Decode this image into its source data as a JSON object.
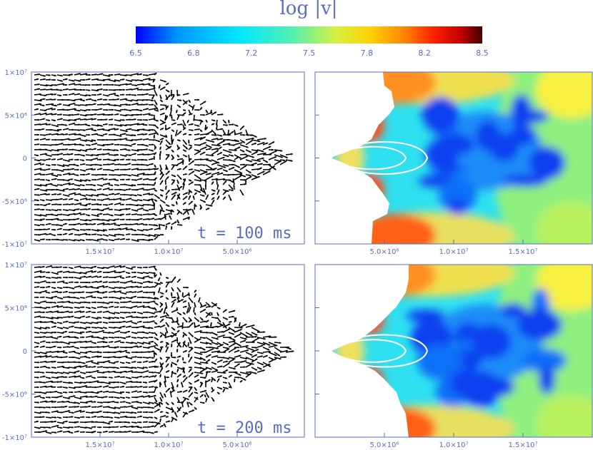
{
  "colorbar": {
    "title": "log |v|",
    "ticks": [
      "6.5",
      "6.8",
      "7.2",
      "7.5",
      "7.8",
      "8.2",
      "8.5"
    ],
    "stops": [
      "#0000ff",
      "#0096ff",
      "#00e8ff",
      "#52f0b0",
      "#d8f040",
      "#ffd000",
      "#ff8000",
      "#ff2000",
      "#c00000",
      "#400000"
    ]
  },
  "panels": [
    {
      "time_label": "t = 100 ms",
      "y_ticks": [
        "1×10⁷",
        "5×10⁶",
        "0",
        "-5×10⁶",
        "-1×10⁷"
      ],
      "x_ticks_left": [
        "1.5×10⁷",
        "1.0×10⁷",
        "5.0×10⁶"
      ],
      "x_ticks_right": [
        "5.0×10⁶",
        "1.0×10⁷",
        "1.5×10⁷"
      ]
    },
    {
      "time_label": "t = 200 ms",
      "y_ticks": [
        "1×10⁷",
        "5×10⁶",
        "0",
        "-5×10⁶",
        "-1×10⁷"
      ],
      "x_ticks_left": [
        "1.5×10⁷",
        "1.0×10⁷",
        "5.0×10⁶"
      ],
      "x_ticks_right": [
        "5.0×10⁶",
        "1.0×10⁷",
        "1.5×10⁷"
      ]
    }
  ],
  "chart_data": [
    {
      "type": "heatmap",
      "title": "log |v|",
      "time": "t = 100 ms",
      "quantity": "log |v|",
      "color_range": [
        6.5,
        8.5
      ],
      "x_ticks": [
        "5.0×10⁶",
        "1.0×10⁷",
        "1.5×10⁷"
      ],
      "y_ticks": [
        "1×10⁷",
        "5×10⁶",
        "0",
        "-5×10⁶",
        "-1×10⁷"
      ],
      "ylim": [
        -10000000,
        10000000
      ]
    },
    {
      "type": "heatmap",
      "title": "log |v|",
      "time": "t = 200 ms",
      "quantity": "log |v|",
      "color_range": [
        6.5,
        8.5
      ],
      "x_ticks": [
        "5.0×10⁶",
        "1.0×10⁷",
        "1.5×10⁷"
      ],
      "y_ticks": [
        "1×10⁷",
        "5×10⁶",
        "0",
        "-5×10⁶",
        "-1×10⁷"
      ],
      "ylim": [
        -10000000,
        10000000
      ]
    }
  ]
}
